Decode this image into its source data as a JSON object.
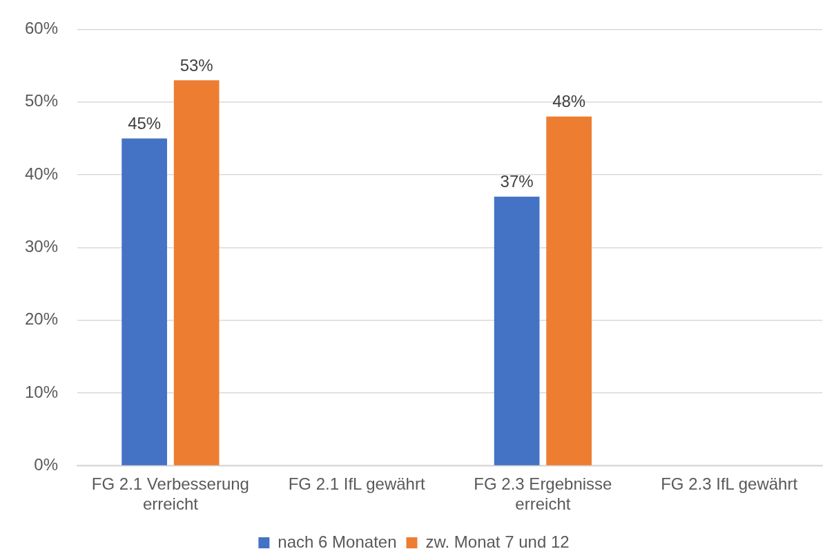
{
  "chart_data": {
    "type": "bar",
    "categories": [
      "FG 2.1 Verbesserung erreicht",
      "FG 2.1 IfL gewährt",
      "FG 2.3 Ergebnisse erreicht",
      "FG 2.3 IfL gewährt"
    ],
    "series": [
      {
        "name": "nach 6 Monaten",
        "color": "#4472c4",
        "values": [
          45,
          null,
          37,
          null
        ],
        "value_labels": [
          "45%",
          null,
          "37%",
          null
        ]
      },
      {
        "name": "zw. Monat 7 und 12",
        "color": "#ed7d31",
        "values": [
          53,
          null,
          48,
          null
        ],
        "value_labels": [
          "53%",
          null,
          "48%",
          null
        ]
      }
    ],
    "ylim": [
      0,
      60
    ],
    "yticks": [
      {
        "value": 0,
        "label": "0%"
      },
      {
        "value": 10,
        "label": "10%"
      },
      {
        "value": 20,
        "label": "20%"
      },
      {
        "value": 30,
        "label": "30%"
      },
      {
        "value": 40,
        "label": "40%"
      },
      {
        "value": 50,
        "label": "50%"
      },
      {
        "value": 60,
        "label": "60%"
      }
    ],
    "grid": "y",
    "legend": "bottom"
  }
}
